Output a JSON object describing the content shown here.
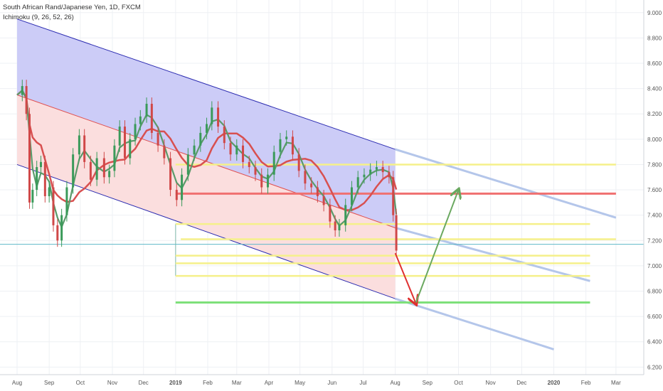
{
  "header": {
    "title": "South African Rand/Japanese Yen, 1D, FXCM",
    "indicator": "Ichimoku (9, 26, 52, 26)"
  },
  "colors": {
    "upper_channel_fill": "#c9c9f7",
    "lower_channel_fill": "#fbdcdc",
    "channel_line": "#2b2bb0",
    "mid_line": "#e05050",
    "projection": "#b4c6ea",
    "support_yellow": "#f5f08a",
    "resistance_red": "#f07070",
    "target_green": "#7ee07a",
    "arrow_down": "#e03030",
    "arrow_up": "#6aa860",
    "candle_up": "#3a9a5a",
    "candle_down": "#d04848",
    "ichimoku_red": "#d85050",
    "ichimoku_green": "#5a9a6a",
    "current_price_line": "#5fb8c8"
  },
  "chart_data": {
    "type": "line",
    "title": "South African Rand/Japanese Yen, 1D, FXCM",
    "y_axis": {
      "range": [
        6.14,
        9.1
      ],
      "ticks": [
        "9.000",
        "8.800",
        "8.600",
        "8.400",
        "8.200",
        "8.000",
        "7.800",
        "7.600",
        "7.400",
        "7.200",
        "7.000",
        "6.800",
        "6.600",
        "6.400",
        "6.200"
      ],
      "position": "right"
    },
    "x_axis": {
      "range": [
        "2018-08-01",
        "2020-03-21"
      ],
      "ticks": [
        {
          "label": "Aug",
          "date": "2018-08-01",
          "bold": false
        },
        {
          "label": "Sep",
          "date": "2018-09-01",
          "bold": false
        },
        {
          "label": "Oct",
          "date": "2018-10-01",
          "bold": false
        },
        {
          "label": "Nov",
          "date": "2018-11-01",
          "bold": false
        },
        {
          "label": "Dec",
          "date": "2018-12-01",
          "bold": false
        },
        {
          "label": "2019",
          "date": "2019-01-01",
          "bold": true
        },
        {
          "label": "Feb",
          "date": "2019-02-01",
          "bold": false
        },
        {
          "label": "Mar",
          "date": "2019-03-01",
          "bold": false
        },
        {
          "label": "Apr",
          "date": "2019-04-01",
          "bold": false
        },
        {
          "label": "May",
          "date": "2019-05-01",
          "bold": false
        },
        {
          "label": "Jun",
          "date": "2019-06-01",
          "bold": false
        },
        {
          "label": "Jul",
          "date": "2019-07-01",
          "bold": false
        },
        {
          "label": "Aug",
          "date": "2019-08-01",
          "bold": false
        },
        {
          "label": "Sep",
          "date": "2019-09-01",
          "bold": false
        },
        {
          "label": "Oct",
          "date": "2019-10-01",
          "bold": false
        },
        {
          "label": "Nov",
          "date": "2019-11-01",
          "bold": false
        },
        {
          "label": "Dec",
          "date": "2019-12-01",
          "bold": false
        },
        {
          "label": "2020",
          "date": "2020-01-01",
          "bold": true
        },
        {
          "label": "Feb",
          "date": "2020-02-01",
          "bold": false
        },
        {
          "label": "Mar",
          "date": "2020-03-01",
          "bold": false
        }
      ]
    },
    "current_price": 7.17,
    "series": [
      {
        "values": [
          [
            "2018-08-01",
            8.35
          ],
          [
            "2018-08-06",
            8.42
          ],
          [
            "2018-08-10",
            8.2
          ],
          [
            "2018-08-13",
            7.5
          ],
          [
            "2018-08-16",
            7.6
          ],
          [
            "2018-08-20",
            7.78
          ],
          [
            "2018-08-24",
            7.82
          ],
          [
            "2018-08-28",
            7.55
          ],
          [
            "2018-09-01",
            7.62
          ],
          [
            "2018-09-05",
            7.32
          ],
          [
            "2018-09-09",
            7.2
          ],
          [
            "2018-09-13",
            7.4
          ],
          [
            "2018-09-18",
            7.62
          ],
          [
            "2018-09-24",
            7.88
          ],
          [
            "2018-09-30",
            8.03
          ],
          [
            "2018-10-05",
            7.82
          ],
          [
            "2018-10-11",
            7.68
          ],
          [
            "2018-10-17",
            7.85
          ],
          [
            "2018-10-24",
            7.7
          ],
          [
            "2018-10-29",
            7.75
          ],
          [
            "2018-11-03",
            7.95
          ],
          [
            "2018-11-08",
            8.1
          ],
          [
            "2018-11-13",
            7.85
          ],
          [
            "2018-11-18",
            8.0
          ],
          [
            "2018-11-23",
            8.12
          ],
          [
            "2018-11-28",
            8.18
          ],
          [
            "2018-12-04",
            8.28
          ],
          [
            "2018-12-09",
            8.05
          ],
          [
            "2018-12-15",
            7.95
          ],
          [
            "2018-12-21",
            7.85
          ],
          [
            "2018-12-27",
            7.6
          ],
          [
            "2019-01-02",
            7.52
          ],
          [
            "2019-01-07",
            7.72
          ],
          [
            "2019-01-13",
            7.88
          ],
          [
            "2019-01-19",
            7.95
          ],
          [
            "2019-01-25",
            8.05
          ],
          [
            "2019-01-31",
            8.12
          ],
          [
            "2019-02-05",
            8.25
          ],
          [
            "2019-02-11",
            8.1
          ],
          [
            "2019-02-17",
            7.97
          ],
          [
            "2019-02-23",
            7.88
          ],
          [
            "2019-03-01",
            7.95
          ],
          [
            "2019-03-07",
            7.82
          ],
          [
            "2019-03-13",
            7.78
          ],
          [
            "2019-03-19",
            7.72
          ],
          [
            "2019-03-25",
            7.62
          ],
          [
            "2019-03-31",
            7.72
          ],
          [
            "2019-04-06",
            7.9
          ],
          [
            "2019-04-12",
            8.0
          ],
          [
            "2019-04-18",
            8.02
          ],
          [
            "2019-04-24",
            7.88
          ],
          [
            "2019-04-30",
            7.75
          ],
          [
            "2019-05-06",
            7.65
          ],
          [
            "2019-05-12",
            7.62
          ],
          [
            "2019-05-18",
            7.55
          ],
          [
            "2019-05-24",
            7.48
          ],
          [
            "2019-05-30",
            7.35
          ],
          [
            "2019-06-04",
            7.28
          ],
          [
            "2019-06-08",
            7.32
          ],
          [
            "2019-06-14",
            7.48
          ],
          [
            "2019-06-20",
            7.62
          ],
          [
            "2019-06-26",
            7.7
          ],
          [
            "2019-07-02",
            7.72
          ],
          [
            "2019-07-08",
            7.76
          ],
          [
            "2019-07-14",
            7.78
          ],
          [
            "2019-07-20",
            7.74
          ],
          [
            "2019-07-26",
            7.7
          ],
          [
            "2019-07-30",
            7.4
          ],
          [
            "2019-08-02",
            7.12
          ]
        ]
      }
    ],
    "channel": {
      "upper": [
        [
          "2018-08-01",
          8.95
        ],
        [
          "2019-08-01",
          7.92
        ]
      ],
      "middle": [
        [
          "2018-08-01",
          8.35
        ],
        [
          "2019-08-01",
          7.3
        ]
      ],
      "lower": [
        [
          "2018-08-01",
          7.8
        ],
        [
          "2019-08-01",
          6.74
        ]
      ],
      "projection_upper": [
        [
          "2019-08-01",
          7.92
        ],
        [
          "2020-03-01",
          7.38
        ]
      ],
      "projection_middle": [
        [
          "2019-08-01",
          7.3
        ],
        [
          "2020-02-05",
          6.88
        ]
      ],
      "projection_lower": [
        [
          "2019-08-01",
          6.74
        ],
        [
          "2020-01-01",
          6.34
        ]
      ]
    },
    "horizontal_levels": [
      {
        "value": 7.8,
        "from": "2019-01-01",
        "to": "2020-03-01",
        "color": "yellow"
      },
      {
        "value": 7.57,
        "from": "2019-01-01",
        "to": "2020-03-01",
        "color": "red"
      },
      {
        "value": 7.33,
        "from": "2019-01-01",
        "to": "2020-02-05",
        "color": "yellow"
      },
      {
        "value": 7.21,
        "from": "2019-01-06",
        "to": "2020-03-01",
        "color": "yellow"
      },
      {
        "value": 7.08,
        "from": "2019-01-01",
        "to": "2020-02-05",
        "color": "yellow"
      },
      {
        "value": 7.02,
        "from": "2019-01-01",
        "to": "2020-02-05",
        "color": "yellow"
      },
      {
        "value": 6.92,
        "from": "2019-01-01",
        "to": "2020-02-05",
        "color": "yellow"
      },
      {
        "value": 6.71,
        "from": "2019-01-01",
        "to": "2020-02-05",
        "color": "green"
      }
    ],
    "arrows": [
      {
        "from": [
          "2019-08-01",
          7.1
        ],
        "to": [
          "2019-08-21",
          6.7
        ],
        "color": "red"
      },
      {
        "from": [
          "2019-08-21",
          6.71
        ],
        "to": [
          "2019-10-01",
          7.6
        ],
        "color": "green"
      }
    ]
  }
}
